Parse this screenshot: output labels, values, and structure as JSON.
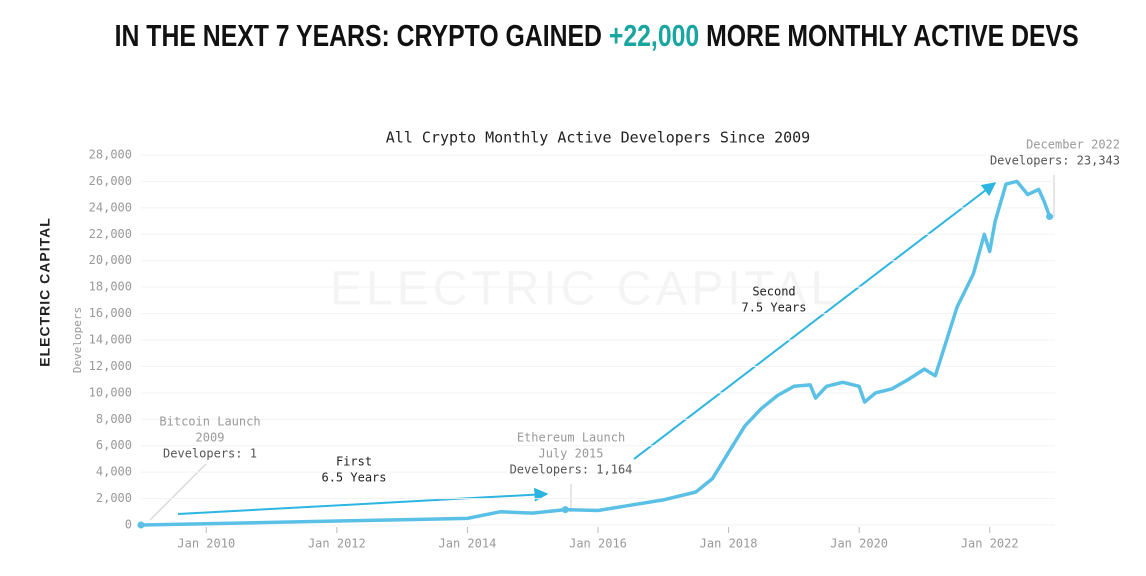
{
  "headline": {
    "before": "IN THE NEXT 7 YEARS: CRYPTO GAINED",
    "highlight": "+22,000",
    "after": "MORE MONTHLY ACTIVE DEVS"
  },
  "brand": "ELECTRIC CAPITAL",
  "chart_data": {
    "type": "line",
    "title": "All Crypto Monthly Active Developers Since 2009",
    "y_label": "Developers",
    "x": [
      "2009-01",
      "2010-01",
      "2011-01",
      "2012-01",
      "2013-01",
      "2014-01",
      "2014-07",
      "2015-01",
      "2015-07",
      "2016-01",
      "2016-07",
      "2017-01",
      "2017-07",
      "2017-10",
      "2018-01",
      "2018-04",
      "2018-07",
      "2018-10",
      "2019-01",
      "2019-04",
      "2019-05",
      "2019-07",
      "2019-10",
      "2020-01",
      "2020-02",
      "2020-04",
      "2020-07",
      "2020-10",
      "2021-01",
      "2021-03",
      "2021-04",
      "2021-07",
      "2021-10",
      "2021-12",
      "2022-01",
      "2022-02",
      "2022-04",
      "2022-06",
      "2022-08",
      "2022-10",
      "2022-11",
      "2022-12"
    ],
    "series": [
      {
        "name": "Developers",
        "color": "#5bc0e6",
        "values": [
          1,
          100,
          200,
          300,
          400,
          500,
          1000,
          900,
          1164,
          1100,
          1500,
          1900,
          2500,
          3500,
          5500,
          7500,
          8800,
          9800,
          10500,
          10600,
          9600,
          10500,
          10800,
          10500,
          9300,
          10000,
          10300,
          11000,
          11800,
          11300,
          12600,
          16500,
          19000,
          22000,
          20700,
          23000,
          25800,
          26000,
          25000,
          25400,
          24500,
          23343
        ]
      }
    ],
    "xlim": [
      "2009-01",
      "2023-01"
    ],
    "xticks": [
      {
        "value": "2010-01",
        "label": "Jan 2010"
      },
      {
        "value": "2012-01",
        "label": "Jan 2012"
      },
      {
        "value": "2014-01",
        "label": "Jan 2014"
      },
      {
        "value": "2016-01",
        "label": "Jan 2016"
      },
      {
        "value": "2018-01",
        "label": "Jan 2018"
      },
      {
        "value": "2020-01",
        "label": "Jan 2020"
      },
      {
        "value": "2022-01",
        "label": "Jan 2022"
      }
    ],
    "ylim": [
      0,
      28000
    ],
    "yticks": [
      0,
      {
        "value": 2000,
        "label": "2,000"
      },
      {
        "value": 4000,
        "label": "4,000"
      },
      {
        "value": 6000,
        "label": "6,000"
      },
      {
        "value": 8000,
        "label": "8,000"
      },
      {
        "value": 10000,
        "label": "10,000"
      },
      {
        "value": 12000,
        "label": "12,000"
      },
      {
        "value": 14000,
        "label": "14,000"
      },
      {
        "value": 16000,
        "label": "16,000"
      },
      {
        "value": 18000,
        "label": "18,000"
      },
      {
        "value": 20000,
        "label": "20,000"
      },
      {
        "value": 22000,
        "label": "22,000"
      },
      {
        "value": 24000,
        "label": "24,000"
      },
      {
        "value": 26000,
        "label": "26,000"
      },
      {
        "value": 28000,
        "label": "28,000"
      }
    ],
    "grid": true,
    "annotations": [
      {
        "lines": [
          "Bitcoin Launch",
          "2009",
          "Developers: 1"
        ],
        "point": 0
      },
      {
        "lines": [
          "Ethereum Launch",
          "July 2015",
          "Developers: 1,164"
        ],
        "point": 8
      },
      {
        "lines": [
          "December 2022",
          "Developers: 23,343"
        ],
        "point": 41
      },
      {
        "lines": [
          "First",
          "6.5 Years"
        ]
      },
      {
        "lines": [
          "Second",
          "7.5 Years"
        ]
      }
    ]
  }
}
